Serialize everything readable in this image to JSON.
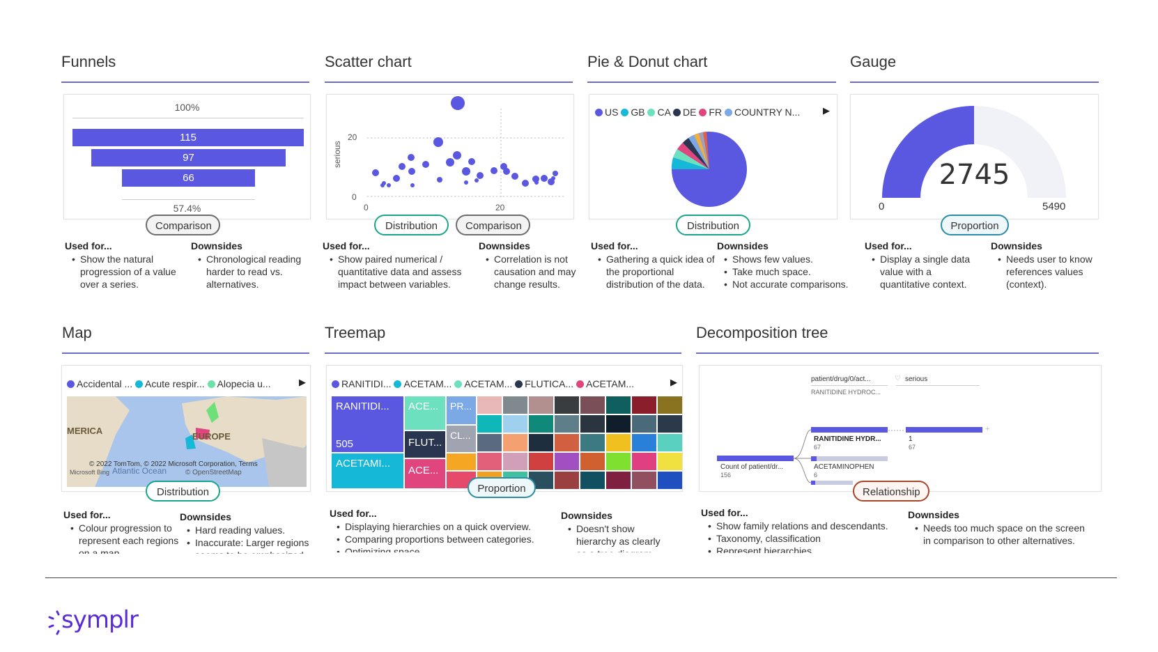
{
  "brand": {
    "name": "symplr",
    "color": "#5a2bd8"
  },
  "colors": {
    "accent": "#5a57e0",
    "rule": "#6b6bc9"
  },
  "sections": {
    "funnels": {
      "title": "Funnels",
      "top_label": "100%",
      "bars": [
        {
          "label": "115",
          "value": 115
        },
        {
          "label": "97",
          "value": 97
        },
        {
          "label": "66",
          "value": 66
        }
      ],
      "bottom_label": "57.4%",
      "tags": [
        "Comparison"
      ],
      "used_for_header": "Used for...",
      "used_for": [
        "Show the natural progression of a value over a series."
      ],
      "downsides_header": "Downsides",
      "downsides": [
        "Chronological reading harder to read vs. alternatives."
      ]
    },
    "scatter": {
      "title": "Scatter chart",
      "ylabel": "serious",
      "y_ticks": [
        "20",
        "0"
      ],
      "x_ticks": [
        "0",
        "20"
      ],
      "tags": [
        "Distribution",
        "Comparison"
      ],
      "used_for_header": "Used for...",
      "used_for": [
        "Show paired numerical / quantitative data and assess impact between variables."
      ],
      "downsides_header": "Downsides",
      "downsides": [
        "Correlation is not causation and may change results."
      ]
    },
    "pie": {
      "title": "Pie & Donut chart",
      "legend": [
        {
          "label": "US",
          "color": "#5a57e0"
        },
        {
          "label": "GB",
          "color": "#15b8d6"
        },
        {
          "label": "CA",
          "color": "#6de0c0"
        },
        {
          "label": "DE",
          "color": "#2a3550"
        },
        {
          "label": "FR",
          "color": "#e0457e"
        },
        {
          "label": "COUNTRY N...",
          "color": "#7aa9e6"
        }
      ],
      "tags": [
        "Distribution"
      ],
      "used_for_header": "Used for...",
      "used_for": [
        "Gathering a quick idea of the proportional distribution of the data."
      ],
      "downsides_header": "Downsides",
      "downsides": [
        "Shows few values.",
        "Take much space.",
        "Not accurate comparisons."
      ]
    },
    "gauge": {
      "title": "Gauge",
      "value": "2745",
      "min": "0",
      "max": "5490",
      "fraction": 0.5,
      "tags": [
        "Proportion"
      ],
      "used_for_header": "Used for...",
      "used_for": [
        "Display a single data value with a quantitative context."
      ],
      "downsides_header": "Downsides",
      "downsides": [
        "Needs user to know references values (context)."
      ]
    },
    "map": {
      "title": "Map",
      "legend": [
        {
          "label": "Accidental ...",
          "color": "#5a57e0"
        },
        {
          "label": "Acute respir...",
          "color": "#15b8d6"
        },
        {
          "label": "Alopecia u...",
          "color": "#6de0a8"
        }
      ],
      "labels": {
        "america": "MERICA",
        "europe": "EUROPE",
        "ocean": "Atlantic Ocean"
      },
      "attribution": "© 2022 TomTom, © 2022 Microsoft Corporation,  Terms",
      "attribution2": "© OpenStreetMap",
      "bing": "Microsoft Bing",
      "tags": [
        "Distribution"
      ],
      "used_for_header": "Used for...",
      "used_for": [
        "Colour progression to represent each regions on a map."
      ],
      "downsides_header": "Downsides",
      "downsides": [
        "Hard reading values.",
        "Inaccurate: Larger regions seems to be emphasized."
      ]
    },
    "treemap": {
      "title": "Treemap",
      "legend": [
        {
          "label": "RANITIDI...",
          "color": "#5a57e0"
        },
        {
          "label": "ACETAM...",
          "color": "#15b8d6"
        },
        {
          "label": "ACETAM...",
          "color": "#6de0c0"
        },
        {
          "label": "FLUTICA...",
          "color": "#2a3550"
        },
        {
          "label": "ACETAM...",
          "color": "#e0457e"
        }
      ],
      "tiles": {
        "t1": "RANITIDI...",
        "t1_value": "505",
        "t2": "ACE...",
        "t3": "PR...",
        "t4": "FLUT...",
        "t5": "CL...",
        "t6": "ACETAMI...",
        "t7": "ACE..."
      },
      "tags": [
        "Proportion"
      ],
      "used_for_header": "Used for...",
      "used_for": [
        "Displaying hierarchies on a quick overview.",
        "Comparing proportions between categories.",
        "Optimizing space."
      ],
      "downsides_header": "Downsides",
      "downsides": [
        "Doesn't show hierarchy as clearly as a tree diagram."
      ]
    },
    "decomp": {
      "title": "Decomposition tree",
      "field1": "patient/drug/0/act...",
      "field1_sub": "RANITIDINE HYDROC...",
      "field2": "serious",
      "root_label": "Count of patient/dr...",
      "root_value": "156",
      "n1_label": "RANITIDINE HYDR...",
      "n1_value": "67",
      "n2_label": "ACETAMINOPHEN",
      "n2_value": "6",
      "n3_label": "1",
      "n3_value": "67",
      "tags": [
        "Relationship"
      ],
      "used_for_header": "Used for...",
      "used_for": [
        "Show family relations and descendants.",
        "Taxonomy, classification",
        "Represent hierarchies."
      ],
      "downsides_header": "Downsides",
      "downsides": [
        "Needs too much space on the screen in comparison to other alternatives."
      ]
    }
  }
}
